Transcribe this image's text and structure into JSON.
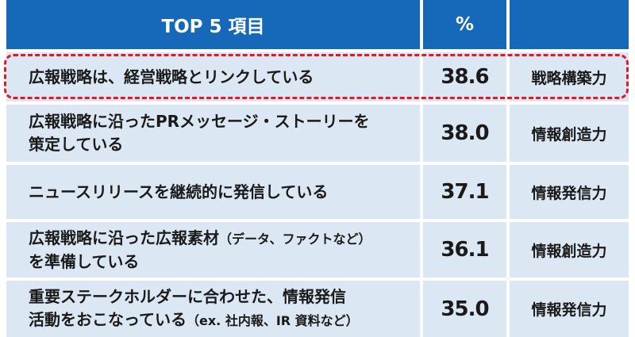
{
  "header": {
    "item": "TOP 5 項目",
    "percent": "%",
    "type": ""
  },
  "rows": [
    {
      "item_line1": "広報戦略は、経営戦略とリンクしている",
      "item_line2": "",
      "percent": "38.6",
      "type": "戦略構築力"
    },
    {
      "item_line1": "広報戦略に沿ったPRメッセージ・ストーリーを",
      "item_line2": "策定している",
      "percent": "38.0",
      "type": "情報創造力"
    },
    {
      "item_line1": "ニュースリリースを継続的に発信している",
      "item_line2": "",
      "percent": "37.1",
      "type": "情報発信力"
    },
    {
      "item_line1": "広報戦略に沿った広報素材",
      "item_line1_note": "（データ、ファクトなど）",
      "item_line2": "を準備している",
      "percent": "36.1",
      "type": "情報創造力"
    },
    {
      "item_line1": "重要ステークホルダーに合わせた、情報発信",
      "item_line2": "活動をおこなっている",
      "item_line2_note": "（ex. 社内報、IR 資料など）",
      "percent": "35.0",
      "type": "情報発信力"
    }
  ],
  "colors": {
    "header_bg": "#1668b8",
    "row_bg": "#dbe7f3",
    "highlight": "#e5182b"
  }
}
